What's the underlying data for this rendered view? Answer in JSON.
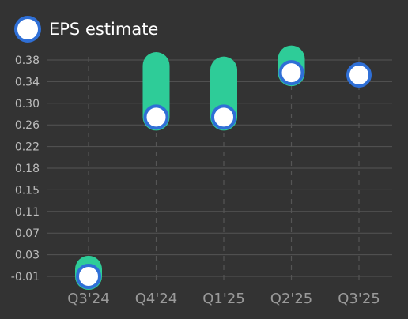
{
  "colors": {
    "background": "#333333",
    "grid": "#555555",
    "tick_text": "#bdbdbd",
    "actual_bar": "#2ecc98",
    "marker_fill": "#ffffff",
    "marker_border": "#2f6fd6"
  },
  "legend": {
    "label": "EPS estimate",
    "icon": "circle-marker-icon",
    "placement": "top-left"
  },
  "chart_data": {
    "type": "scatter",
    "title": "",
    "xlabel": "",
    "ylabel": "",
    "categories": [
      "Q3'24",
      "Q4'24",
      "Q1'25",
      "Q2'25",
      "Q3'25"
    ],
    "y_ticks": [
      "0.38",
      "0.34",
      "0.30",
      "0.26",
      "0.22",
      "0.18",
      "0.15",
      "0.11",
      "0.07",
      "0.03",
      "-0.01"
    ],
    "ylim": [
      -0.01,
      0.38
    ],
    "grid": true,
    "series": [
      {
        "name": "EPS estimate",
        "values": [
          -0.01,
          0.277,
          0.277,
          0.357,
          0.353
        ]
      },
      {
        "values": [
          0.003,
          0.37,
          0.362,
          0.382,
          null
        ]
      }
    ]
  }
}
